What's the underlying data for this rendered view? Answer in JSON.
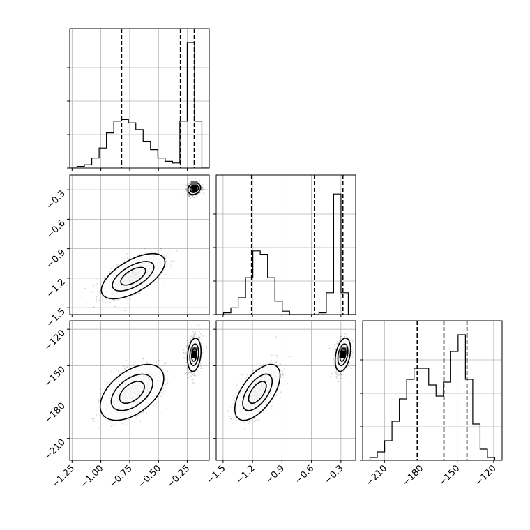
{
  "chart_data": {
    "type": "corner",
    "grid": true,
    "n_params": 3,
    "params": [
      {
        "ticks": [
          -1.25,
          -1.0,
          -0.75,
          -0.5,
          -0.25
        ],
        "tick_labels": [
          "−1.25",
          "−1.00",
          "−0.75",
          "−0.50",
          "−0.25"
        ],
        "range": [
          -1.27,
          -0.06
        ],
        "quantiles": [
          -0.82,
          -0.31,
          -0.19
        ],
        "histogram": [
          0,
          1,
          2,
          6,
          12,
          21,
          28,
          29,
          27,
          23,
          16,
          11,
          6,
          4,
          3,
          28,
          75,
          28,
          0
        ],
        "hist_max": 80
      },
      {
        "ticks": [
          -1.5,
          -1.2,
          -0.9,
          -0.6,
          -0.3
        ],
        "tick_labels": [
          "−1.5",
          "−1.2",
          "−0.9",
          "−0.6",
          "−0.3"
        ],
        "range": [
          -1.57,
          -0.15
        ],
        "quantiles": [
          -1.21,
          -0.57,
          -0.28
        ],
        "histogram": [
          0,
          1,
          4,
          10,
          22,
          38,
          36,
          22,
          8,
          2,
          0,
          0,
          0,
          0,
          1,
          13,
          72,
          13,
          0
        ],
        "hist_max": 80
      },
      {
        "ticks": [
          -210,
          -180,
          -150,
          -120
        ],
        "tick_labels": [
          "−210",
          "−180",
          "−150",
          "−120"
        ],
        "range": [
          -228,
          -113
        ],
        "quantiles": [
          -183,
          -161,
          -142
        ],
        "histogram": [
          0,
          1,
          3,
          7,
          14,
          22,
          29,
          33,
          33,
          27,
          23,
          28,
          39,
          45,
          29,
          13,
          4,
          1,
          0
        ],
        "hist_max": 48
      }
    ],
    "hist_y_ticks": [
      0,
      20,
      40,
      60,
      80
    ],
    "joint": [
      {
        "row": 1,
        "col": 0,
        "modes": [
          {
            "cx": -0.72,
            "cy": -1.18,
            "sx": 0.12,
            "sy": 0.1,
            "rho": 0.62,
            "weight": 0.62
          },
          {
            "cx": -0.19,
            "cy": -0.29,
            "sx": 0.028,
            "sy": 0.03,
            "rho": 0.2,
            "weight": 0.38
          }
        ]
      },
      {
        "row": 2,
        "col": 0,
        "modes": [
          {
            "cx": -0.73,
            "cy": -172,
            "sx": 0.12,
            "sy": 10,
            "rho": 0.5,
            "weight": 0.62
          },
          {
            "cx": -0.19,
            "cy": -141,
            "sx": 0.03,
            "sy": 7,
            "rho": 0.2,
            "weight": 0.38
          }
        ]
      },
      {
        "row": 2,
        "col": 1,
        "modes": [
          {
            "cx": -1.15,
            "cy": -172,
            "sx": 0.1,
            "sy": 10,
            "rho": 0.6,
            "weight": 0.62
          },
          {
            "cx": -0.28,
            "cy": -141,
            "sx": 0.04,
            "sy": 7,
            "rho": 0.35,
            "weight": 0.38
          }
        ]
      }
    ]
  }
}
